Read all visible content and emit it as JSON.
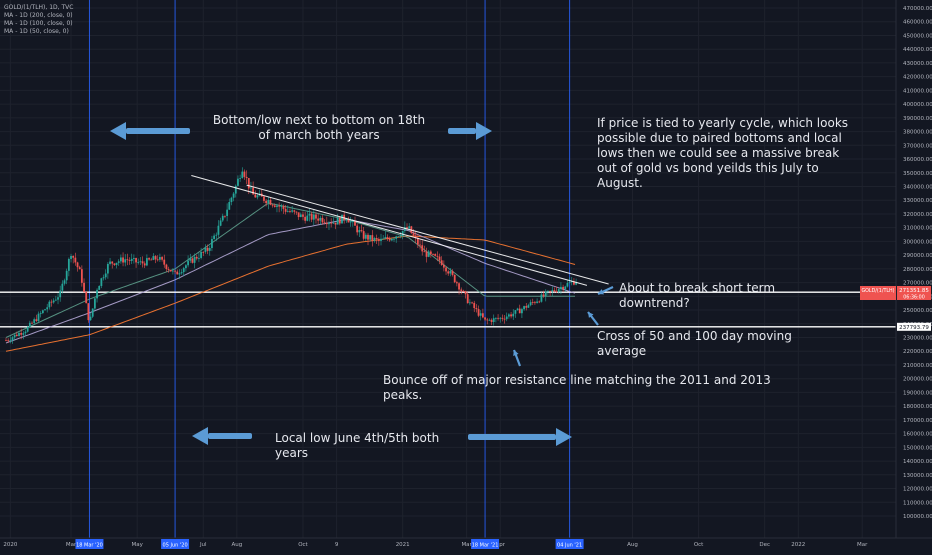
{
  "symbol": "GOLD/(1/TLH), 1D, TVC",
  "indicators": [
    "MA - 1D (200, close, 0)",
    "MA - 1D (100, close, 0)",
    "MA - 1D (50, close, 0)"
  ],
  "colors": {
    "background": "#131722",
    "grid": "#1e222d",
    "up": "#26a69a",
    "down": "#ef5350",
    "ma200": "#ff7b32",
    "ma100": "#b4a7d6",
    "ma50": "#5d9e8c",
    "vline": "#2962ff",
    "trendline": "#ffffff",
    "arrow": "#5b9bd5",
    "price_badge": "#ef5350"
  },
  "annotations": {
    "bottom_low": "Bottom/low next to bottom on 18th of march both years",
    "yearly_cycle": "If price is tied to yearly cycle, which looks possible due to paired bottoms and local lows then we could see a massive break out of gold vs bond yeilds this July to August.",
    "downtrend": "About to break short term downtrend?",
    "cross": "Cross of 50 and 100 day moving average",
    "bounce": "Bounce off of major resistance line matching the 2011 and 2013 peaks.",
    "local_low": "Local low June 4th/5th both years"
  },
  "chart_data": {
    "type": "candlestick",
    "y_axis_labels": [
      "470000.00",
      "460000.00",
      "450000.00",
      "440000.00",
      "430000.00",
      "420000.00",
      "410000.00",
      "400000.00",
      "390000.00",
      "380000.00",
      "370000.00",
      "360000.00",
      "350000.00",
      "340000.00",
      "330000.00",
      "320000.00",
      "310000.00",
      "300000.00",
      "290000.00",
      "280000.00",
      "270000.00",
      "260000.00",
      "250000.00",
      "240000.00",
      "230000.00",
      "220000.00",
      "210000.00",
      "200000.00",
      "190000.00",
      "180000.00",
      "170000.00",
      "160000.00",
      "150000.00",
      "140000.00",
      "130000.00",
      "120000.00",
      "110000.00",
      "100000.00"
    ],
    "ylim": [
      98000,
      476000
    ],
    "x_axis_labels": [
      "2020",
      "Mar",
      "May",
      "Jul",
      "Aug",
      "Oct",
      "9",
      "2021",
      "Mar",
      "Apr",
      "Aug",
      "Oct",
      "Dec",
      "2022",
      "Mar"
    ],
    "highlighted_dates": [
      "18 Mar '20",
      "05 Jun '20",
      "18 Mar '21",
      "04 Jun '21"
    ],
    "horizontal_levels": [
      {
        "label": "263018.50",
        "value": 263018.5
      },
      {
        "label": "237793.79",
        "value": 237793.79
      }
    ],
    "price_badge": {
      "title": "GOLD/(1/TLH)",
      "value": "271351.85",
      "sub": "06:36:00"
    },
    "price_points": [
      {
        "date": "2020-01-01",
        "value": 228000
      },
      {
        "date": "2020-01-20",
        "value": 236000
      },
      {
        "date": "2020-02-05",
        "value": 250000
      },
      {
        "date": "2020-02-20",
        "value": 262000
      },
      {
        "date": "2020-03-01",
        "value": 292000
      },
      {
        "date": "2020-03-10",
        "value": 276000
      },
      {
        "date": "2020-03-18",
        "value": 240000
      },
      {
        "date": "2020-03-25",
        "value": 266000
      },
      {
        "date": "2020-04-05",
        "value": 284000
      },
      {
        "date": "2020-04-20",
        "value": 287000
      },
      {
        "date": "2020-05-05",
        "value": 284000
      },
      {
        "date": "2020-05-20",
        "value": 288000
      },
      {
        "date": "2020-06-05",
        "value": 276000
      },
      {
        "date": "2020-06-20",
        "value": 286000
      },
      {
        "date": "2020-07-05",
        "value": 294000
      },
      {
        "date": "2020-07-20",
        "value": 318000
      },
      {
        "date": "2020-07-31",
        "value": 340000
      },
      {
        "date": "2020-08-06",
        "value": 354000
      },
      {
        "date": "2020-08-15",
        "value": 334000
      },
      {
        "date": "2020-08-30",
        "value": 330000
      },
      {
        "date": "2020-09-15",
        "value": 323000
      },
      {
        "date": "2020-09-30",
        "value": 318000
      },
      {
        "date": "2020-10-15",
        "value": 317000
      },
      {
        "date": "2020-10-30",
        "value": 314000
      },
      {
        "date": "2020-11-10",
        "value": 318000
      },
      {
        "date": "2020-11-25",
        "value": 304000
      },
      {
        "date": "2020-12-10",
        "value": 300000
      },
      {
        "date": "2020-12-25",
        "value": 304000
      },
      {
        "date": "2021-01-06",
        "value": 310000
      },
      {
        "date": "2021-01-20",
        "value": 292000
      },
      {
        "date": "2021-02-05",
        "value": 286000
      },
      {
        "date": "2021-02-20",
        "value": 270000
      },
      {
        "date": "2021-03-01",
        "value": 258000
      },
      {
        "date": "2021-03-18",
        "value": 242000
      },
      {
        "date": "2021-04-01",
        "value": 244000
      },
      {
        "date": "2021-04-15",
        "value": 248000
      },
      {
        "date": "2021-04-30",
        "value": 255000
      },
      {
        "date": "2021-05-15",
        "value": 262000
      },
      {
        "date": "2021-05-30",
        "value": 268000
      },
      {
        "date": "2021-06-05",
        "value": 270000
      },
      {
        "date": "2021-06-10",
        "value": 271351.85
      }
    ],
    "moving_averages": [
      {
        "name": "MA - 1D (200, close, 0)",
        "points": [
          {
            "date": "2020-01-01",
            "value": 220000
          },
          {
            "date": "2020-03-18",
            "value": 232000
          },
          {
            "date": "2020-06-05",
            "value": 255000
          },
          {
            "date": "2020-08-30",
            "value": 282000
          },
          {
            "date": "2020-11-10",
            "value": 298000
          },
          {
            "date": "2021-01-06",
            "value": 304000
          },
          {
            "date": "2021-03-18",
            "value": 301000
          },
          {
            "date": "2021-06-10",
            "value": 283000
          }
        ]
      },
      {
        "name": "MA - 1D (100, close, 0)",
        "points": [
          {
            "date": "2020-01-01",
            "value": 226000
          },
          {
            "date": "2020-03-18",
            "value": 248000
          },
          {
            "date": "2020-06-05",
            "value": 272000
          },
          {
            "date": "2020-08-30",
            "value": 305000
          },
          {
            "date": "2020-11-10",
            "value": 316000
          },
          {
            "date": "2021-01-06",
            "value": 308000
          },
          {
            "date": "2021-03-18",
            "value": 284000
          },
          {
            "date": "2021-06-10",
            "value": 262000
          }
        ]
      },
      {
        "name": "MA - 1D (50, close, 0)",
        "points": [
          {
            "date": "2020-01-01",
            "value": 230000
          },
          {
            "date": "2020-03-18",
            "value": 258000
          },
          {
            "date": "2020-06-05",
            "value": 280000
          },
          {
            "date": "2020-08-30",
            "value": 328000
          },
          {
            "date": "2020-11-10",
            "value": 316000
          },
          {
            "date": "2021-01-06",
            "value": 303000
          },
          {
            "date": "2021-03-18",
            "value": 260000
          },
          {
            "date": "2021-06-10",
            "value": 260000
          }
        ]
      }
    ],
    "trendlines": [
      {
        "from": {
          "date": "2020-06-20",
          "value": 348000
        },
        "to": {
          "date": "2021-06-20",
          "value": 268000
        }
      },
      {
        "from": {
          "date": "2020-08-10",
          "value": 341000
        },
        "to": {
          "date": "2021-07-10",
          "value": 269000
        }
      }
    ]
  }
}
